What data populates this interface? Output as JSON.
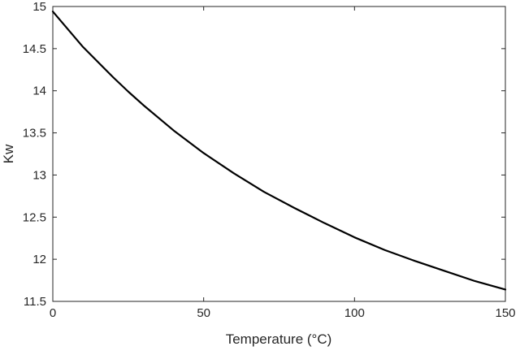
{
  "chart_data": {
    "type": "line",
    "xlabel": "Temperature (°C)",
    "ylabel": "Kw",
    "xlim": [
      0,
      150
    ],
    "ylim": [
      11.5,
      15
    ],
    "xticks": [
      0,
      50,
      100,
      150
    ],
    "xtick_labels": [
      "0",
      "50",
      "100",
      "150"
    ],
    "yticks": [
      11.5,
      12,
      12.5,
      13,
      13.5,
      14,
      14.5,
      15
    ],
    "ytick_labels": [
      "11.5",
      "12",
      "12.5",
      "13",
      "13.5",
      "14",
      "14.5",
      "15"
    ],
    "grid": false,
    "legend": "none",
    "line_color": "#000000",
    "series": [
      {
        "x": [
          0,
          10,
          20,
          25,
          30,
          40,
          50,
          60,
          70,
          80,
          90,
          100,
          110,
          120,
          130,
          140,
          150
        ],
        "values": [
          14.94,
          14.52,
          14.16,
          13.99,
          13.83,
          13.53,
          13.26,
          13.02,
          12.8,
          12.61,
          12.43,
          12.26,
          12.11,
          11.98,
          11.86,
          11.74,
          11.64
        ]
      }
    ]
  }
}
